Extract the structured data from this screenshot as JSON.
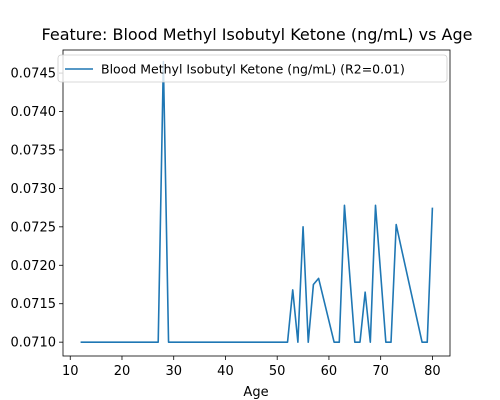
{
  "chart_data": {
    "type": "line",
    "title": "Feature: Blood Methyl Isobutyl Ketone (ng/mL) vs Age",
    "xlabel": "Age",
    "ylabel": "",
    "xlim": [
      8.6,
      83.4
    ],
    "ylim": [
      0.07082,
      0.0748
    ],
    "xticks": [
      10,
      20,
      30,
      40,
      50,
      60,
      70,
      80
    ],
    "yticks": [
      0.071,
      0.0715,
      0.072,
      0.0725,
      0.073,
      0.0735,
      0.074,
      0.0745
    ],
    "ytick_labels": [
      "0.0710",
      "0.0715",
      "0.0720",
      "0.0725",
      "0.0730",
      "0.0735",
      "0.0740",
      "0.0745"
    ],
    "grid": false,
    "legend_position": "upper-left",
    "series": [
      {
        "name": "Blood Methyl Isobutyl Ketone (ng/mL) (R2=0.01)",
        "color": "#1f77b4",
        "x": [
          12,
          27,
          28,
          29,
          52,
          53,
          54,
          55,
          56,
          57,
          58,
          61,
          62,
          63,
          65,
          66,
          67,
          68,
          69,
          71,
          72,
          73,
          74,
          78,
          79,
          80
        ],
        "y": [
          0.071,
          0.071,
          0.07465,
          0.071,
          0.071,
          0.07168,
          0.071,
          0.0725,
          0.071,
          0.07175,
          0.07183,
          0.071,
          0.071,
          0.07278,
          0.071,
          0.071,
          0.07165,
          0.071,
          0.07278,
          0.071,
          0.071,
          0.07253,
          0.07222,
          0.071,
          0.071,
          0.07275
        ]
      }
    ]
  }
}
